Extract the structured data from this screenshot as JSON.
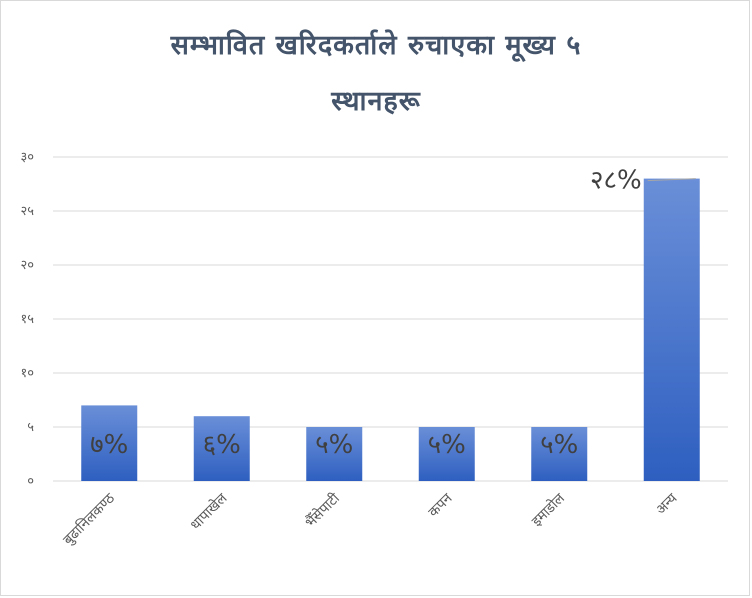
{
  "chart_data": {
    "type": "bar",
    "title_line1": "सम्भावित खरिदकर्ताले रुचाएका मूख्य ५",
    "title_line2": "स्थानहरू",
    "categories": [
      "बुढानिलकण्ठ",
      "धापाखेल",
      "भैँसेपाटी",
      "कपन",
      "इमाडोल",
      "अन्य"
    ],
    "values": [
      7,
      6,
      5,
      5,
      5,
      28
    ],
    "data_labels": [
      "७%",
      "६%",
      "५%",
      "५%",
      "५%",
      "२८%"
    ],
    "ylim": [
      0,
      30
    ],
    "yticks": [
      {
        "value": 0,
        "label": "०"
      },
      {
        "value": 5,
        "label": "५"
      },
      {
        "value": 10,
        "label": "१०"
      },
      {
        "value": 15,
        "label": "१५"
      },
      {
        "value": 20,
        "label": "२०"
      },
      {
        "value": 25,
        "label": "२५"
      },
      {
        "value": 30,
        "label": "३०"
      }
    ],
    "grid": true,
    "bar_color_top": "#6a8fd8",
    "bar_color_bottom": "#2e5fc0"
  }
}
